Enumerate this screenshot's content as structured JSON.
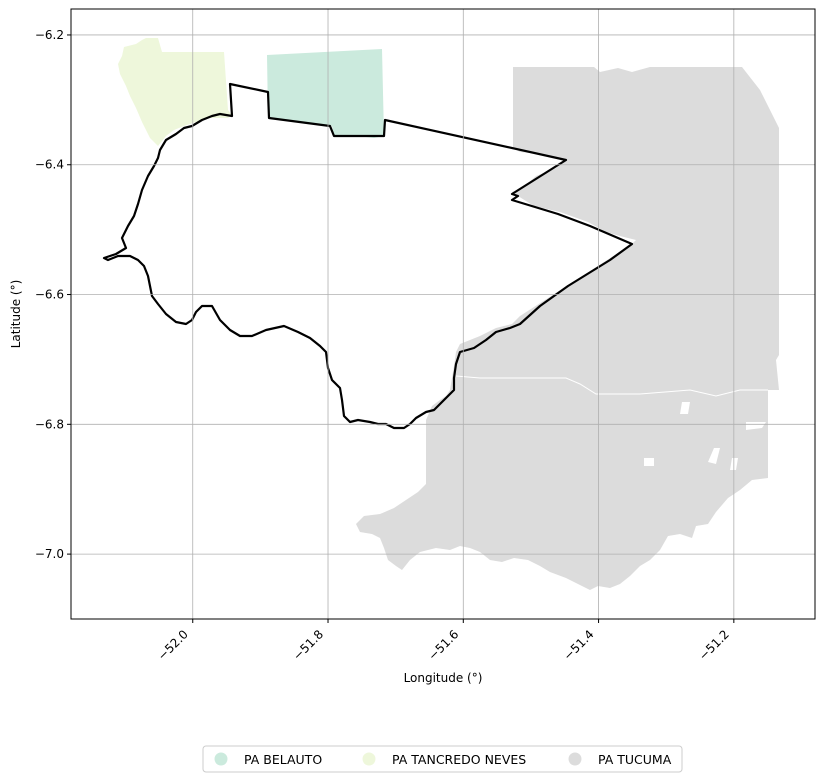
{
  "map": {
    "xlabel": "Longitude (°)",
    "ylabel": "Latitude (°)",
    "xlim": [
      -52.18,
      -51.08
    ],
    "ylim": [
      -7.1,
      -6.16
    ],
    "xticks": [
      -52.0,
      -51.8,
      -51.6,
      -51.4,
      -51.2
    ],
    "xtick_labels": [
      "−52.0",
      "−51.8",
      "−51.6",
      "−51.4",
      "−51.2"
    ],
    "yticks": [
      -6.2,
      -6.4,
      -6.6,
      -6.8,
      -7.0
    ],
    "ytick_labels": [
      "−6.2",
      "−6.4",
      "−6.6",
      "−6.8",
      "−7.0"
    ],
    "grid": true,
    "legend_position": "bottom-center"
  },
  "legend": [
    {
      "label": "PA BELAUTO",
      "color": "#cbeadd"
    },
    {
      "label": "PA TANCREDO NEVES",
      "color": "#eef7db"
    },
    {
      "label": "PA TUCUMA",
      "color": "#dcdcdc"
    }
  ],
  "colors": {
    "belauto": "#cbeadd",
    "tancredo": "#eef7db",
    "tucuma": "#dcdcdc",
    "boundary": "#000000",
    "grid": "#b0b0b0"
  }
}
